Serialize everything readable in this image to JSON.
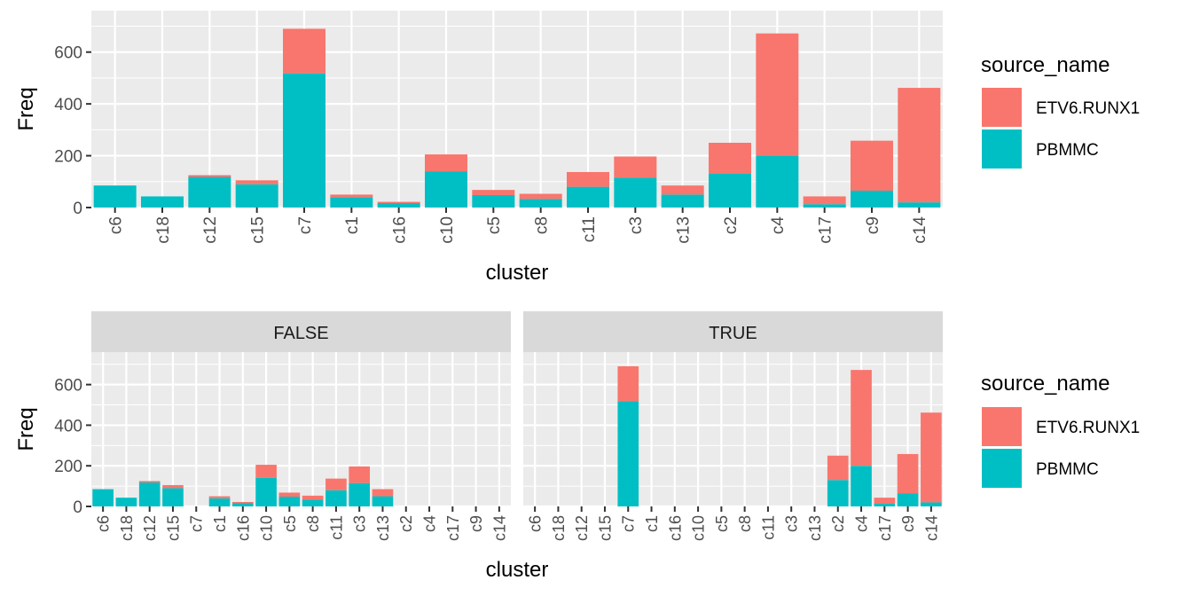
{
  "chart_data": [
    {
      "type": "bar",
      "stacked": true,
      "xlabel": "cluster",
      "ylabel": "Freq",
      "ylim": [
        0,
        700
      ],
      "yticks": [
        0,
        200,
        400,
        600
      ],
      "grid": true,
      "legend": {
        "title": "source_name",
        "position": "right"
      },
      "categories": [
        "c6",
        "c18",
        "c12",
        "c15",
        "c7",
        "c1",
        "c16",
        "c10",
        "c5",
        "c8",
        "c11",
        "c3",
        "c13",
        "c2",
        "c4",
        "c17",
        "c9",
        "c14"
      ],
      "series": [
        {
          "name": "PBMMC",
          "color": "#00BFC4",
          "values": [
            85,
            43,
            118,
            90,
            518,
            40,
            17,
            140,
            48,
            33,
            80,
            115,
            50,
            130,
            200,
            13,
            65,
            20
          ]
        },
        {
          "name": "ETV6.RUNX1",
          "color": "#F8766D",
          "values": [
            0,
            0,
            7,
            15,
            172,
            10,
            5,
            65,
            20,
            20,
            57,
            82,
            35,
            120,
            472,
            30,
            193,
            442
          ]
        }
      ]
    },
    {
      "type": "bar",
      "stacked": true,
      "faceted": true,
      "xlabel": "cluster",
      "ylabel": "Freq",
      "ylim": [
        0,
        700
      ],
      "yticks": [
        0,
        200,
        400,
        600
      ],
      "grid": true,
      "legend": {
        "title": "source_name",
        "position": "right"
      },
      "categories": [
        "c6",
        "c18",
        "c12",
        "c15",
        "c7",
        "c1",
        "c16",
        "c10",
        "c5",
        "c8",
        "c11",
        "c3",
        "c13",
        "c2",
        "c4",
        "c17",
        "c9",
        "c14"
      ],
      "facets": [
        {
          "label": "FALSE",
          "series": [
            {
              "name": "PBMMC",
              "color": "#00BFC4",
              "values": [
                85,
                43,
                118,
                90,
                0,
                40,
                17,
                140,
                48,
                33,
                80,
                115,
                50,
                0,
                0,
                0,
                0,
                0
              ]
            },
            {
              "name": "ETV6.RUNX1",
              "color": "#F8766D",
              "values": [
                0,
                0,
                7,
                15,
                0,
                10,
                5,
                65,
                20,
                20,
                57,
                82,
                35,
                0,
                0,
                0,
                0,
                0
              ]
            }
          ]
        },
        {
          "label": "TRUE",
          "series": [
            {
              "name": "PBMMC",
              "color": "#00BFC4",
              "values": [
                0,
                0,
                0,
                0,
                518,
                0,
                0,
                0,
                0,
                0,
                0,
                0,
                0,
                130,
                200,
                13,
                65,
                20
              ]
            },
            {
              "name": "ETV6.RUNX1",
              "color": "#F8766D",
              "values": [
                0,
                0,
                0,
                0,
                172,
                0,
                0,
                0,
                0,
                0,
                0,
                0,
                0,
                120,
                472,
                30,
                193,
                442
              ]
            }
          ]
        }
      ]
    }
  ]
}
